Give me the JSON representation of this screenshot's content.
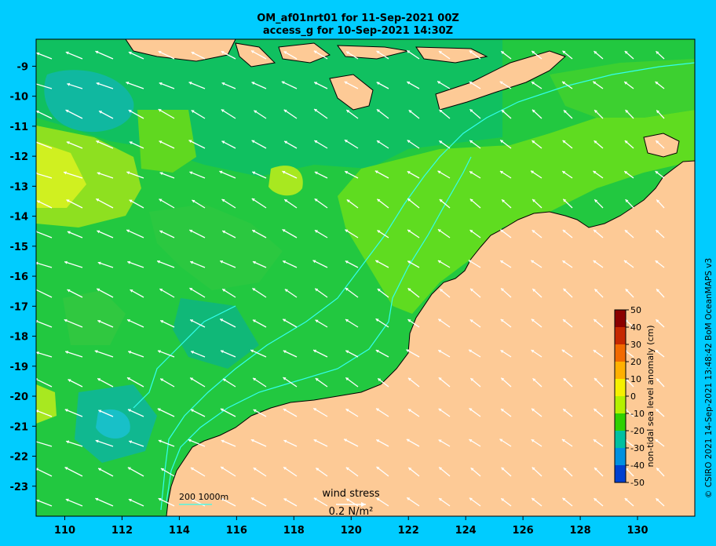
{
  "header": {
    "title_line1": "OM_af01nrt01 for 11-Sep-2021 00Z",
    "title_line2": "access_g for 10-Sep-2021 14:30Z"
  },
  "map": {
    "lon_ticks": [
      "110",
      "112",
      "114",
      "116",
      "118",
      "120",
      "122",
      "124",
      "126",
      "128",
      "130"
    ],
    "lat_ticks": [
      "-9",
      "-10",
      "-11",
      "-12",
      "-13",
      "-14",
      "-15",
      "-16",
      "-17",
      "-18",
      "-19",
      "-20",
      "-21",
      "-22",
      "-23"
    ],
    "lon_range": [
      109,
      132
    ],
    "lat_range": [
      -24,
      -8.1
    ],
    "land_color": "#fdca96",
    "isobath_color": "#33ffee",
    "wind_arrow_color": "#ffffff"
  },
  "colorbar": {
    "label": "non-tidal sea level anomaly (cm)",
    "ticks": [
      "50",
      "40",
      "30",
      "20",
      "10",
      "0",
      "-10",
      "-20",
      "-30",
      "-40",
      "-50"
    ],
    "colors": [
      "#8b0000",
      "#c62800",
      "#f26a00",
      "#ffb000",
      "#f6f000",
      "#b4f000",
      "#30d000",
      "#00c0a0",
      "#0090e0",
      "#0040d0",
      "#00008b"
    ]
  },
  "legend": {
    "isobaths": "200  1000m",
    "wind_stress_title": "wind stress",
    "wind_stress_value": "0.2 N/m²"
  },
  "credit": "© CSIRO 2021  14-Sep-2021 13:48:42 BoM OceanMAPS v3"
}
